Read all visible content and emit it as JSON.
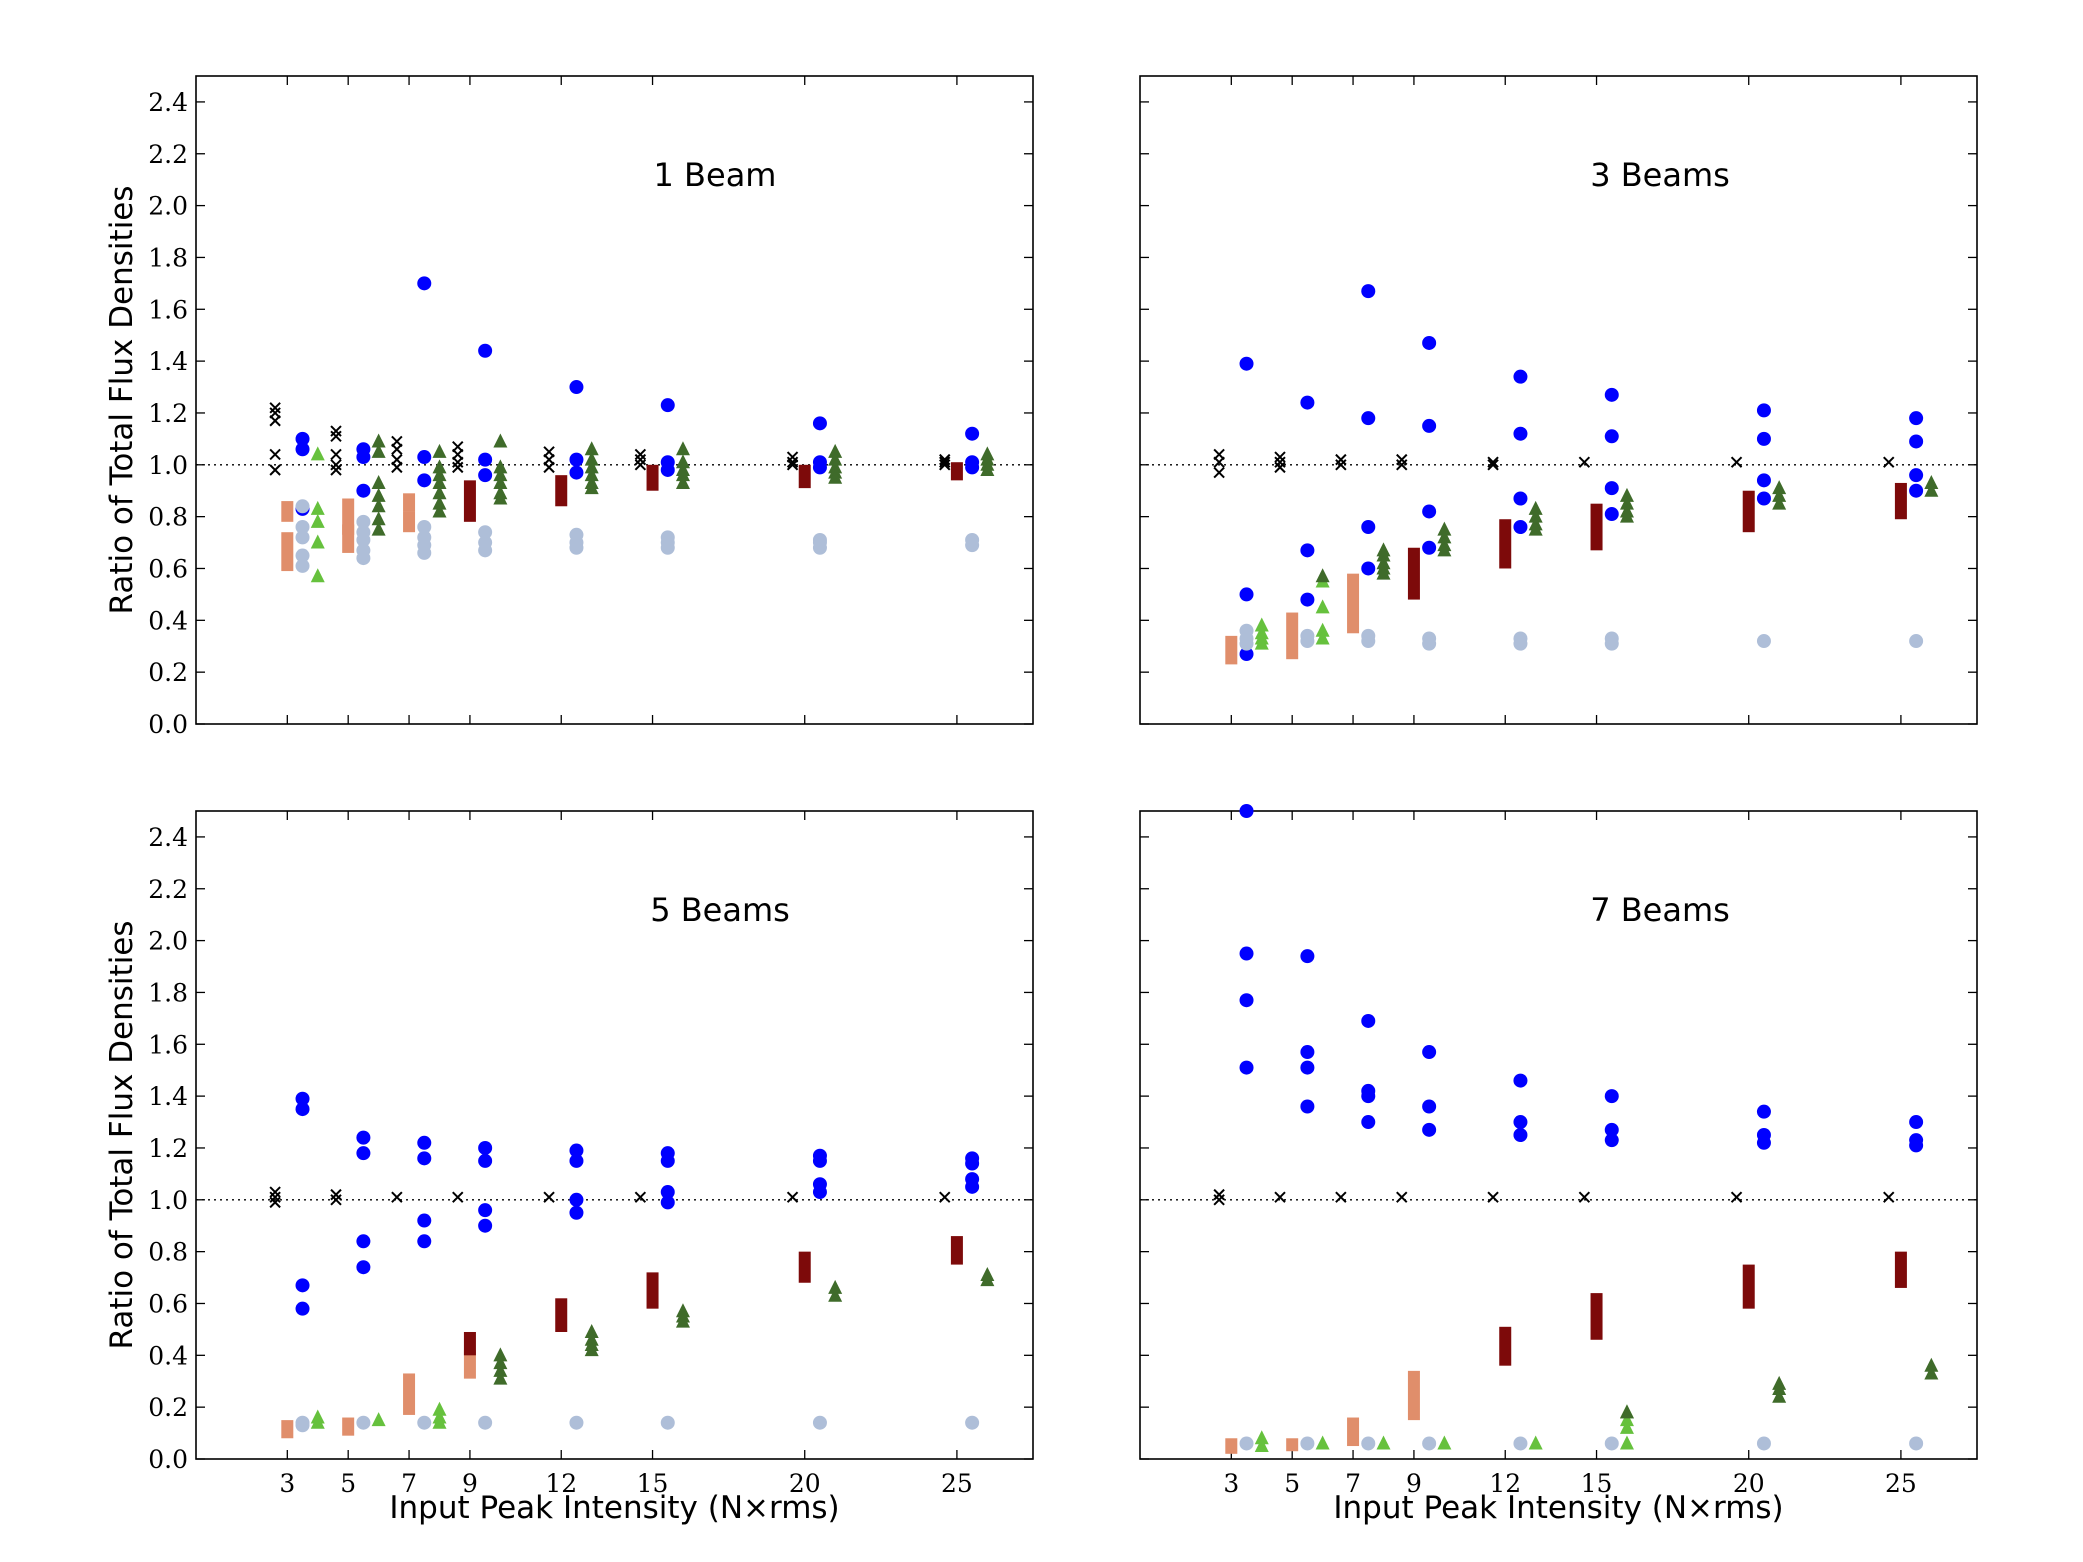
{
  "figure": {
    "ylabel": "Ratio of Total Flux Densities",
    "xlabel": "Input Peak Intensity (N×rms)",
    "y_ticks": [
      "0.0",
      "0.2",
      "0.4",
      "0.6",
      "0.8",
      "1.0",
      "1.2",
      "1.4",
      "1.6",
      "1.8",
      "2.0",
      "2.2",
      "2.4"
    ],
    "x_ticks": [
      "3",
      "5",
      "7",
      "9",
      "12",
      "15",
      "20",
      "25"
    ]
  },
  "chart_data": [
    {
      "type": "scatter",
      "title": "1 Beam",
      "xlabel": "",
      "ylabel": "Ratio of Total Flux Densities",
      "xlim": [
        0,
        27.5
      ],
      "ylim": [
        0,
        2.5
      ],
      "reference_line": 1.0,
      "series": [
        {
          "marker": "x",
          "color": "#000000",
          "x": [
            2.6,
            2.6,
            2.6,
            2.6,
            2.6,
            4.6,
            4.6,
            4.6,
            4.6,
            4.6,
            6.6,
            6.6,
            6.6,
            6.6,
            8.6,
            8.6,
            8.6,
            8.6,
            11.6,
            11.6,
            11.6,
            14.6,
            14.6,
            14.6,
            19.6,
            19.6,
            19.6,
            24.6,
            24.6,
            24.6
          ],
          "y": [
            1.22,
            1.2,
            1.17,
            1.04,
            0.98,
            1.13,
            1.11,
            1.04,
            1.0,
            0.98,
            1.09,
            1.06,
            1.02,
            0.99,
            1.07,
            1.04,
            1.01,
            0.99,
            1.05,
            1.02,
            0.99,
            1.04,
            1.02,
            1.0,
            1.03,
            1.01,
            1.0,
            1.02,
            1.01,
            1.0
          ]
        },
        {
          "marker": "bar",
          "color": "#e08e6b",
          "x": [
            3.0,
            3.0,
            5.0,
            5.0,
            7.0,
            7.0
          ],
          "y0": [
            0.78,
            0.59,
            0.73,
            0.66,
            0.82,
            0.74
          ],
          "y1": [
            0.86,
            0.74,
            0.87,
            0.77,
            0.89,
            0.82
          ]
        },
        {
          "marker": "o",
          "color": "#0000ff",
          "x": [
            3.5,
            3.5,
            3.5,
            5.5,
            5.5,
            5.5,
            7.5,
            7.5,
            7.5,
            9.5,
            9.5,
            9.5,
            12.5,
            12.5,
            12.5,
            15.5,
            15.5,
            15.5,
            20.5,
            20.5,
            20.5,
            25.5,
            25.5,
            25.5
          ],
          "y": [
            1.1,
            1.06,
            0.83,
            1.06,
            1.03,
            0.9,
            1.7,
            1.03,
            0.94,
            1.44,
            1.02,
            0.96,
            1.3,
            1.02,
            0.97,
            1.23,
            1.01,
            0.98,
            1.16,
            1.01,
            0.99,
            1.12,
            1.01,
            0.99
          ]
        },
        {
          "marker": "o",
          "color": "#aebed8",
          "x": [
            3.5,
            3.5,
            3.5,
            3.5,
            3.5,
            5.5,
            5.5,
            5.5,
            5.5,
            5.5,
            7.5,
            7.5,
            7.5,
            7.5,
            9.5,
            9.5,
            9.5,
            12.5,
            12.5,
            12.5,
            15.5,
            15.5,
            15.5,
            20.5,
            20.5,
            20.5,
            25.5,
            25.5
          ],
          "y": [
            0.84,
            0.76,
            0.72,
            0.65,
            0.61,
            0.78,
            0.74,
            0.71,
            0.67,
            0.64,
            0.76,
            0.72,
            0.69,
            0.66,
            0.74,
            0.7,
            0.67,
            0.73,
            0.7,
            0.68,
            0.72,
            0.7,
            0.68,
            0.71,
            0.7,
            0.68,
            0.71,
            0.69
          ]
        },
        {
          "marker": "^",
          "color": "#66c13d",
          "x": [
            4.0,
            4.0,
            4.0,
            4.0,
            4.0
          ],
          "y": [
            1.04,
            0.83,
            0.78,
            0.7,
            0.57
          ]
        },
        {
          "marker": "^",
          "color": "#3f6b2a",
          "x": [
            6.0,
            6.0,
            6.0,
            6.0,
            6.0,
            6.0,
            6.0,
            8.0,
            8.0,
            8.0,
            8.0,
            8.0,
            8.0,
            8.0,
            10.0,
            10.0,
            10.0,
            10.0,
            10.0,
            10.0,
            13.0,
            13.0,
            13.0,
            13.0,
            13.0,
            13.0,
            16.0,
            16.0,
            16.0,
            16.0,
            16.0,
            21.0,
            21.0,
            21.0,
            21.0,
            21.0,
            26.0,
            26.0,
            26.0,
            26.0
          ],
          "y": [
            1.09,
            1.05,
            0.93,
            0.88,
            0.84,
            0.79,
            0.75,
            1.05,
            0.99,
            0.96,
            0.93,
            0.89,
            0.85,
            0.82,
            1.09,
            0.99,
            0.96,
            0.93,
            0.89,
            0.87,
            1.06,
            1.02,
            0.99,
            0.96,
            0.93,
            0.91,
            1.06,
            1.01,
            0.98,
            0.96,
            0.93,
            1.05,
            1.02,
            0.99,
            0.97,
            0.95,
            1.04,
            1.02,
            1.0,
            0.98
          ]
        },
        {
          "marker": "bar",
          "color": "#7d0a0a",
          "x": [
            9.0,
            12.0,
            15.0,
            20.0,
            25.0
          ],
          "y0": [
            0.78,
            0.84,
            0.9,
            0.91,
            0.94
          ],
          "y1": [
            0.94,
            0.96,
            1.0,
            1.0,
            1.01
          ]
        }
      ]
    },
    {
      "type": "scatter",
      "title": "3 Beams",
      "xlabel": "",
      "ylabel": "",
      "xlim": [
        0,
        27.5
      ],
      "ylim": [
        0,
        2.5
      ],
      "reference_line": 1.0,
      "series": [
        {
          "marker": "x",
          "color": "#000000",
          "x": [
            2.6,
            2.6,
            2.6,
            4.6,
            4.6,
            4.6,
            6.6,
            6.6,
            8.6,
            8.6,
            11.6,
            11.6,
            14.6,
            19.6,
            24.6
          ],
          "y": [
            1.04,
            1.01,
            0.97,
            1.03,
            1.01,
            0.99,
            1.02,
            1.0,
            1.02,
            1.0,
            1.01,
            1.0,
            1.01,
            1.01,
            1.01
          ]
        },
        {
          "marker": "bar",
          "color": "#e08e6b",
          "x": [
            3.0,
            5.0,
            7.0
          ],
          "y0": [
            0.23,
            0.25,
            0.35
          ],
          "y1": [
            0.34,
            0.43,
            0.58
          ]
        },
        {
          "marker": "o",
          "color": "#0000ff",
          "x": [
            3.5,
            3.5,
            3.5,
            5.5,
            5.5,
            5.5,
            7.5,
            7.5,
            7.5,
            7.5,
            9.5,
            9.5,
            9.5,
            9.5,
            12.5,
            12.5,
            12.5,
            12.5,
            15.5,
            15.5,
            15.5,
            15.5,
            20.5,
            20.5,
            20.5,
            20.5,
            25.5,
            25.5,
            25.5,
            25.5
          ],
          "y": [
            1.39,
            0.5,
            0.27,
            1.24,
            0.67,
            0.48,
            1.67,
            1.18,
            0.76,
            0.6,
            1.47,
            1.15,
            0.82,
            0.68,
            1.34,
            1.12,
            0.87,
            0.76,
            1.27,
            1.11,
            0.91,
            0.81,
            1.21,
            1.1,
            0.94,
            0.87,
            1.18,
            1.09,
            0.96,
            0.9
          ]
        },
        {
          "marker": "o",
          "color": "#aebed8",
          "x": [
            3.5,
            3.5,
            3.5,
            5.5,
            5.5,
            7.5,
            7.5,
            9.5,
            9.5,
            12.5,
            12.5,
            15.5,
            15.5,
            20.5,
            25.5
          ],
          "y": [
            0.36,
            0.33,
            0.31,
            0.34,
            0.32,
            0.34,
            0.32,
            0.33,
            0.31,
            0.33,
            0.31,
            0.33,
            0.31,
            0.32,
            0.32
          ]
        },
        {
          "marker": "^",
          "color": "#66c13d",
          "x": [
            4.0,
            4.0,
            4.0,
            4.0,
            6.0,
            6.0,
            6.0,
            6.0
          ],
          "y": [
            0.38,
            0.35,
            0.33,
            0.31,
            0.55,
            0.45,
            0.36,
            0.33
          ]
        },
        {
          "marker": "^",
          "color": "#3f6b2a",
          "x": [
            6.0,
            8.0,
            8.0,
            8.0,
            8.0,
            8.0,
            10.0,
            10.0,
            10.0,
            10.0,
            13.0,
            13.0,
            13.0,
            13.0,
            16.0,
            16.0,
            16.0,
            16.0,
            21.0,
            21.0,
            21.0,
            26.0,
            26.0
          ],
          "y": [
            0.57,
            0.67,
            0.65,
            0.62,
            0.6,
            0.58,
            0.75,
            0.72,
            0.69,
            0.67,
            0.83,
            0.8,
            0.77,
            0.75,
            0.88,
            0.85,
            0.82,
            0.8,
            0.91,
            0.88,
            0.85,
            0.93,
            0.9
          ]
        },
        {
          "marker": "bar",
          "color": "#7d0a0a",
          "x": [
            9.0,
            12.0,
            15.0,
            20.0,
            25.0
          ],
          "y0": [
            0.48,
            0.6,
            0.67,
            0.74,
            0.79
          ],
          "y1": [
            0.68,
            0.79,
            0.85,
            0.9,
            0.93
          ]
        }
      ]
    },
    {
      "type": "scatter",
      "title": "5 Beams",
      "xlabel": "Input Peak Intensity (N×rms)",
      "ylabel": "Ratio of Total Flux Densities",
      "xlim": [
        0,
        27.5
      ],
      "ylim": [
        0,
        2.5
      ],
      "reference_line": 1.0,
      "series": [
        {
          "marker": "x",
          "color": "#000000",
          "x": [
            2.6,
            2.6,
            2.6,
            4.6,
            4.6,
            6.6,
            8.6,
            11.6,
            14.6,
            19.6,
            24.6
          ],
          "y": [
            1.03,
            1.01,
            0.99,
            1.02,
            1.0,
            1.01,
            1.01,
            1.01,
            1.01,
            1.01,
            1.01
          ]
        },
        {
          "marker": "bar",
          "color": "#e08e6b",
          "x": [
            3.0,
            5.0,
            7.0,
            9.0
          ],
          "y0": [
            0.08,
            0.09,
            0.17,
            0.31
          ],
          "y1": [
            0.15,
            0.16,
            0.33,
            0.42
          ]
        },
        {
          "marker": "o",
          "color": "#0000ff",
          "x": [
            3.5,
            3.5,
            3.5,
            3.5,
            5.5,
            5.5,
            5.5,
            5.5,
            7.5,
            7.5,
            7.5,
            7.5,
            9.5,
            9.5,
            9.5,
            9.5,
            12.5,
            12.5,
            12.5,
            12.5,
            15.5,
            15.5,
            15.5,
            15.5,
            20.5,
            20.5,
            20.5,
            20.5,
            25.5,
            25.5,
            25.5,
            25.5
          ],
          "y": [
            1.39,
            1.35,
            0.67,
            0.58,
            1.24,
            1.18,
            0.84,
            0.74,
            1.22,
            1.16,
            0.92,
            0.84,
            1.2,
            1.15,
            0.96,
            0.9,
            1.19,
            1.15,
            1.0,
            0.95,
            1.18,
            1.15,
            1.03,
            0.99,
            1.17,
            1.15,
            1.06,
            1.03,
            1.16,
            1.14,
            1.08,
            1.05
          ]
        },
        {
          "marker": "o",
          "color": "#aebed8",
          "x": [
            3.5,
            3.5,
            5.5,
            7.5,
            9.5,
            12.5,
            15.5,
            20.5,
            25.5
          ],
          "y": [
            0.14,
            0.13,
            0.14,
            0.14,
            0.14,
            0.14,
            0.14,
            0.14,
            0.14
          ]
        },
        {
          "marker": "^",
          "color": "#66c13d",
          "x": [
            4.0,
            4.0,
            6.0,
            8.0,
            8.0,
            8.0
          ],
          "y": [
            0.16,
            0.14,
            0.15,
            0.19,
            0.16,
            0.14
          ]
        },
        {
          "marker": "^",
          "color": "#3f6b2a",
          "x": [
            10.0,
            10.0,
            10.0,
            10.0,
            13.0,
            13.0,
            13.0,
            13.0,
            16.0,
            16.0,
            16.0,
            21.0,
            21.0,
            26.0,
            26.0
          ],
          "y": [
            0.4,
            0.37,
            0.34,
            0.31,
            0.49,
            0.46,
            0.44,
            0.42,
            0.57,
            0.55,
            0.53,
            0.66,
            0.63,
            0.71,
            0.69
          ]
        },
        {
          "marker": "bar",
          "color": "#7d0a0a",
          "x": [
            9.0,
            12.0,
            15.0,
            20.0,
            25.0
          ],
          "y0": [
            0.4,
            0.49,
            0.58,
            0.68,
            0.75
          ],
          "y1": [
            0.49,
            0.62,
            0.72,
            0.8,
            0.86
          ]
        }
      ]
    },
    {
      "type": "scatter",
      "title": "7 Beams",
      "xlabel": "Input Peak Intensity (N×rms)",
      "ylabel": "",
      "xlim": [
        0,
        27.5
      ],
      "ylim": [
        0,
        2.5
      ],
      "reference_line": 1.0,
      "series": [
        {
          "marker": "x",
          "color": "#000000",
          "x": [
            2.6,
            2.6,
            4.6,
            6.6,
            8.6,
            11.6,
            14.6,
            19.6,
            24.6
          ],
          "y": [
            1.02,
            1.0,
            1.01,
            1.01,
            1.01,
            1.01,
            1.01,
            1.01,
            1.01
          ]
        },
        {
          "marker": "bar",
          "color": "#e08e6b",
          "x": [
            3.0,
            5.0,
            7.0,
            9.0
          ],
          "y0": [
            0.02,
            0.03,
            0.05,
            0.15
          ],
          "y1": [
            0.08,
            0.08,
            0.16,
            0.34
          ]
        },
        {
          "marker": "o",
          "color": "#0000ff",
          "x": [
            3.5,
            3.5,
            3.5,
            3.5,
            5.5,
            5.5,
            5.5,
            5.5,
            7.5,
            7.5,
            7.5,
            7.5,
            9.5,
            9.5,
            9.5,
            12.5,
            12.5,
            12.5,
            15.5,
            15.5,
            15.5,
            20.5,
            20.5,
            20.5,
            25.5,
            25.5,
            25.5
          ],
          "y": [
            2.5,
            1.95,
            1.77,
            1.51,
            1.94,
            1.57,
            1.51,
            1.36,
            1.69,
            1.42,
            1.4,
            1.3,
            1.57,
            1.36,
            1.27,
            1.46,
            1.3,
            1.25,
            1.4,
            1.27,
            1.23,
            1.34,
            1.25,
            1.22,
            1.3,
            1.23,
            1.21
          ]
        },
        {
          "marker": "o",
          "color": "#aebed8",
          "x": [
            3.5,
            5.5,
            7.5,
            9.5,
            12.5,
            15.5,
            20.5,
            25.5
          ],
          "y": [
            0.06,
            0.06,
            0.06,
            0.06,
            0.06,
            0.06,
            0.06,
            0.06
          ]
        },
        {
          "marker": "^",
          "color": "#66c13d",
          "x": [
            4.0,
            4.0,
            6.0,
            8.0,
            10.0,
            13.0,
            16.0,
            16.0,
            16.0,
            16.0
          ],
          "y": [
            0.08,
            0.05,
            0.06,
            0.06,
            0.06,
            0.06,
            0.18,
            0.15,
            0.12,
            0.06
          ]
        },
        {
          "marker": "^",
          "color": "#3f6b2a",
          "x": [
            16.0,
            21.0,
            21.0,
            21.0,
            26.0,
            26.0
          ],
          "y": [
            0.18,
            0.29,
            0.27,
            0.24,
            0.36,
            0.33
          ]
        },
        {
          "marker": "bar",
          "color": "#7d0a0a",
          "x": [
            12.0,
            15.0,
            20.0,
            25.0
          ],
          "y0": [
            0.36,
            0.46,
            0.58,
            0.66
          ],
          "y1": [
            0.51,
            0.64,
            0.75,
            0.8
          ]
        }
      ]
    }
  ]
}
